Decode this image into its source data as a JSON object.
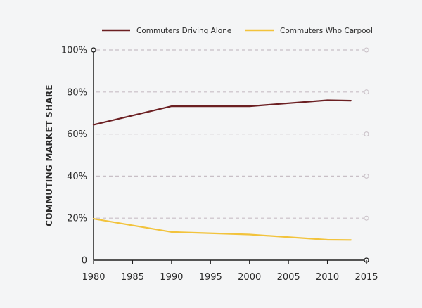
{
  "chart_data": {
    "type": "line",
    "title": "",
    "xlabel": "",
    "ylabel": "COMMUTING MARKET SHARE",
    "xlim": [
      1980,
      2015
    ],
    "ylim": [
      0,
      100
    ],
    "x_ticks": [
      "1980",
      "1985",
      "1990",
      "1995",
      "2000",
      "2005",
      "2010",
      "2015"
    ],
    "y_ticks": [
      "0",
      "20%",
      "40%",
      "60%",
      "80%",
      "100%"
    ],
    "grid": "horizontal dashed",
    "legend_position": "top",
    "series": [
      {
        "name": "Commuters Driving Alone",
        "color": "#6b1f22",
        "x": [
          1980,
          1990,
          2000,
          2010,
          2013
        ],
        "y": [
          64.4,
          73.2,
          73.2,
          76.1,
          75.9
        ]
      },
      {
        "name": "Commuters Who Carpool",
        "color": "#f2c33c",
        "x": [
          1980,
          1990,
          2000,
          2010,
          2013
        ],
        "y": [
          19.7,
          13.4,
          12.2,
          9.7,
          9.6
        ]
      }
    ]
  }
}
